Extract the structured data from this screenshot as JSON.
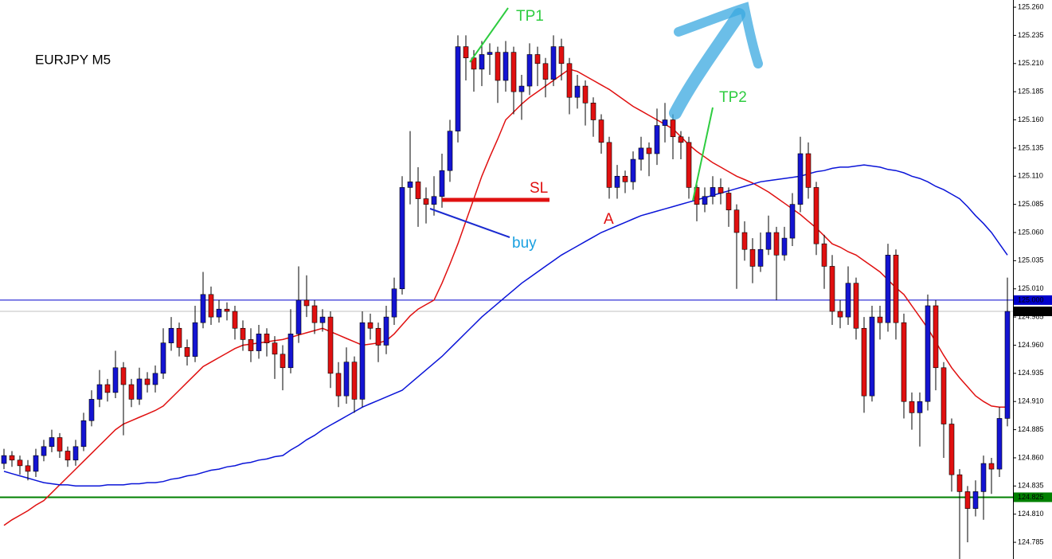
{
  "chart_data": {
    "type": "candlestick",
    "title": "EURJPY M5",
    "up_color": "#1414d2",
    "down_color": "#e01010",
    "ylim": [
      124.7702,
      125.2664
    ],
    "yticks": [
      124.785,
      {
        "value": 124.81,
        "label": "124.810"
      },
      124.835,
      {
        "value": 124.86,
        "label": "124.860"
      },
      124.885,
      {
        "value": 124.91,
        "label": "124.910"
      },
      124.935,
      {
        "value": 124.96,
        "label": "124.960"
      },
      124.985,
      {
        "value": 125.01,
        "label": "125.010"
      },
      125.035,
      {
        "value": 125.06,
        "label": "125.060"
      },
      125.085,
      {
        "value": 125.11,
        "label": "125.110"
      },
      125.135,
      {
        "value": 125.16,
        "label": "125.160"
      },
      125.185,
      {
        "value": 125.21,
        "label": "125.210"
      },
      125.235,
      {
        "value": 125.26,
        "label": "125.260"
      }
    ],
    "levels": [
      {
        "value": 125.0,
        "label": "125.000",
        "color": "#0000cc"
      },
      {
        "value": 124.99,
        "label": "124.990",
        "color": "#000000"
      },
      {
        "value": 124.825,
        "label": "124.825",
        "color": "#008000"
      }
    ],
    "annotations": {
      "tp1": "TP1",
      "tp2": "TP2",
      "sl": "SL",
      "buy": "buy",
      "a": "A"
    },
    "candles": [
      [
        124.855,
        124.868,
        124.85,
        124.862
      ],
      [
        124.862,
        124.866,
        124.852,
        124.858
      ],
      [
        124.858,
        124.862,
        124.845,
        124.853
      ],
      [
        124.853,
        124.858,
        124.84,
        124.848
      ],
      [
        124.848,
        124.868,
        124.843,
        124.862
      ],
      [
        124.862,
        124.876,
        124.857,
        124.87
      ],
      [
        124.87,
        124.885,
        124.865,
        124.878
      ],
      [
        124.878,
        124.882,
        124.86,
        124.866
      ],
      [
        124.866,
        124.87,
        124.852,
        124.858
      ],
      [
        124.858,
        124.876,
        124.853,
        124.87
      ],
      [
        124.87,
        124.9,
        124.866,
        124.893
      ],
      [
        124.893,
        124.92,
        124.888,
        124.912
      ],
      [
        124.912,
        124.938,
        124.905,
        124.925
      ],
      [
        124.925,
        124.93,
        124.91,
        124.918
      ],
      [
        124.918,
        124.955,
        124.913,
        124.94
      ],
      [
        124.94,
        124.945,
        124.88,
        124.925
      ],
      [
        124.925,
        124.93,
        124.905,
        124.912
      ],
      [
        124.912,
        124.94,
        124.907,
        124.93
      ],
      [
        124.93,
        124.936,
        124.918,
        124.925
      ],
      [
        124.925,
        124.942,
        124.918,
        124.935
      ],
      [
        124.935,
        124.975,
        124.93,
        124.962
      ],
      [
        124.962,
        124.985,
        124.955,
        124.975
      ],
      [
        124.975,
        124.98,
        124.95,
        124.958
      ],
      [
        124.958,
        124.965,
        124.942,
        124.95
      ],
      [
        124.95,
        124.995,
        124.945,
        124.98
      ],
      [
        124.98,
        125.025,
        124.975,
        125.005
      ],
      [
        125.005,
        125.012,
        124.978,
        124.985
      ],
      [
        124.985,
        125.0,
        124.98,
        124.992
      ],
      [
        124.992,
        124.998,
        124.982,
        124.99
      ],
      [
        124.99,
        124.995,
        124.965,
        124.975
      ],
      [
        124.975,
        124.982,
        124.955,
        124.965
      ],
      [
        124.965,
        124.975,
        124.945,
        124.955
      ],
      [
        124.955,
        124.978,
        124.948,
        124.97
      ],
      [
        124.97,
        124.975,
        124.95,
        124.962
      ],
      [
        124.962,
        124.968,
        124.93,
        124.952
      ],
      [
        124.952,
        124.96,
        124.92,
        124.94
      ],
      [
        124.94,
        124.992,
        124.935,
        124.97
      ],
      [
        124.97,
        125.03,
        124.962,
        125.0
      ],
      [
        125.0,
        125.022,
        124.985,
        124.995
      ],
      [
        124.995,
        125.0,
        124.97,
        124.98
      ],
      [
        124.98,
        124.992,
        124.972,
        124.985
      ],
      [
        124.985,
        124.99,
        124.922,
        124.935
      ],
      [
        124.935,
        124.945,
        124.905,
        124.915
      ],
      [
        124.915,
        124.958,
        124.908,
        124.945
      ],
      [
        124.945,
        124.95,
        124.9,
        124.912
      ],
      [
        124.912,
        124.99,
        124.905,
        124.98
      ],
      [
        124.98,
        124.988,
        124.965,
        124.975
      ],
      [
        124.975,
        124.98,
        124.945,
        124.96
      ],
      [
        124.96,
        124.995,
        124.952,
        124.985
      ],
      [
        124.985,
        125.02,
        124.978,
        125.01
      ],
      [
        125.01,
        125.11,
        125.005,
        125.1
      ],
      [
        125.1,
        125.15,
        125.085,
        125.105
      ],
      [
        125.105,
        125.118,
        125.065,
        125.09
      ],
      [
        125.09,
        125.1,
        125.068,
        125.085
      ],
      [
        125.085,
        125.11,
        125.075,
        125.092
      ],
      [
        125.092,
        125.13,
        125.082,
        125.115
      ],
      [
        125.115,
        125.16,
        125.105,
        125.15
      ],
      [
        125.15,
        125.235,
        125.14,
        125.225
      ],
      [
        125.225,
        125.235,
        125.195,
        125.215
      ],
      [
        125.215,
        125.222,
        125.185,
        125.205
      ],
      [
        125.205,
        125.23,
        125.19,
        125.218
      ],
      [
        125.218,
        125.228,
        125.2,
        125.22
      ],
      [
        125.22,
        125.225,
        125.175,
        125.195
      ],
      [
        125.195,
        125.23,
        125.185,
        125.22
      ],
      [
        125.22,
        125.225,
        125.165,
        125.185
      ],
      [
        125.185,
        125.2,
        125.16,
        125.19
      ],
      [
        125.19,
        125.228,
        125.182,
        125.218
      ],
      [
        125.218,
        125.225,
        125.19,
        125.21
      ],
      [
        125.21,
        125.215,
        125.18,
        125.196
      ],
      [
        125.196,
        125.235,
        125.19,
        125.225
      ],
      [
        125.225,
        125.232,
        125.195,
        125.21
      ],
      [
        125.21,
        125.215,
        125.165,
        125.18
      ],
      [
        125.18,
        125.2,
        125.17,
        125.19
      ],
      [
        125.19,
        125.195,
        125.155,
        125.175
      ],
      [
        125.175,
        125.18,
        125.145,
        125.16
      ],
      [
        125.16,
        125.165,
        125.13,
        125.14
      ],
      [
        125.14,
        125.145,
        125.09,
        125.1
      ],
      [
        125.1,
        125.12,
        125.09,
        125.11
      ],
      [
        125.11,
        125.115,
        125.095,
        125.105
      ],
      [
        125.105,
        125.132,
        125.098,
        125.125
      ],
      [
        125.125,
        125.145,
        125.115,
        125.135
      ],
      [
        125.135,
        125.14,
        125.11,
        125.13
      ],
      [
        125.13,
        125.17,
        125.12,
        125.155
      ],
      [
        125.155,
        125.175,
        125.14,
        125.16
      ],
      [
        125.16,
        125.165,
        125.125,
        125.145
      ],
      [
        125.145,
        125.15,
        125.125,
        125.14
      ],
      [
        125.14,
        125.145,
        125.09,
        125.1
      ],
      [
        125.1,
        125.105,
        125.07,
        125.085
      ],
      [
        125.085,
        125.1,
        125.078,
        125.092
      ],
      [
        125.092,
        125.11,
        125.085,
        125.1
      ],
      [
        125.1,
        125.108,
        125.085,
        125.095
      ],
      [
        125.095,
        125.1,
        125.065,
        125.08
      ],
      [
        125.08,
        125.085,
        125.01,
        125.06
      ],
      [
        125.06,
        125.07,
        125.035,
        125.045
      ],
      [
        125.045,
        125.055,
        125.015,
        125.03
      ],
      [
        125.03,
        125.06,
        125.025,
        125.045
      ],
      [
        125.045,
        125.075,
        125.04,
        125.06
      ],
      [
        125.06,
        125.065,
        125.0,
        125.04
      ],
      [
        125.04,
        125.065,
        125.035,
        125.055
      ],
      [
        125.055,
        125.095,
        125.048,
        125.085
      ],
      [
        125.085,
        125.145,
        125.078,
        125.13
      ],
      [
        125.13,
        125.14,
        125.09,
        125.1
      ],
      [
        125.1,
        125.105,
        125.04,
        125.05
      ],
      [
        125.05,
        125.058,
        125.01,
        125.03
      ],
      [
        125.03,
        125.04,
        124.978,
        124.99
      ],
      [
        124.99,
        125.0,
        124.975,
        124.985
      ],
      [
        124.985,
        125.03,
        124.978,
        125.015
      ],
      [
        125.015,
        125.02,
        124.965,
        124.975
      ],
      [
        124.975,
        124.985,
        124.9,
        124.915
      ],
      [
        124.915,
        124.995,
        124.91,
        124.985
      ],
      [
        124.985,
        124.995,
        124.965,
        124.98
      ],
      [
        124.98,
        125.05,
        124.972,
        125.04
      ],
      [
        125.04,
        125.045,
        124.965,
        124.98
      ],
      [
        124.98,
        124.988,
        124.895,
        124.91
      ],
      [
        124.91,
        124.918,
        124.885,
        124.9
      ],
      [
        124.9,
        124.918,
        124.87,
        124.91
      ],
      [
        124.91,
        125.005,
        124.902,
        124.995
      ],
      [
        124.995,
        125.0,
        124.92,
        124.94
      ],
      [
        124.94,
        124.945,
        124.86,
        124.89
      ],
      [
        124.89,
        124.895,
        124.83,
        124.845
      ],
      [
        124.845,
        124.85,
        124.77,
        124.83
      ],
      [
        124.83,
        124.835,
        124.785,
        124.815
      ],
      [
        124.815,
        124.84,
        124.808,
        124.83
      ],
      [
        124.83,
        124.862,
        124.805,
        124.855
      ],
      [
        124.855,
        124.86,
        124.828,
        124.85
      ],
      [
        124.85,
        124.905,
        124.843,
        124.895
      ],
      [
        124.895,
        125.02,
        124.888,
        124.99
      ]
    ],
    "series": [
      {
        "color": "#e01010",
        "values": [
          124.8,
          124.805,
          124.809,
          124.813,
          124.818,
          124.822,
          124.829,
          124.836,
          124.843,
          124.85,
          124.857,
          124.864,
          124.871,
          124.878,
          124.885,
          124.89,
          124.893,
          124.896,
          124.899,
          124.902,
          124.906,
          124.913,
          124.92,
          124.927,
          124.934,
          124.941,
          124.945,
          124.949,
          124.953,
          124.957,
          124.96,
          124.961,
          124.962,
          124.963,
          124.964,
          124.965,
          124.967,
          124.969,
          124.971,
          124.973,
          124.975,
          124.972,
          124.969,
          124.966,
          124.963,
          124.96,
          124.961,
          124.962,
          124.964,
          124.97,
          124.978,
          124.986,
          124.992,
          124.996,
          125.0,
          125.015,
          125.032,
          125.05,
          125.07,
          125.09,
          125.11,
          125.127,
          125.143,
          125.16,
          125.167,
          125.174,
          125.18,
          125.185,
          125.19,
          125.195,
          125.2,
          125.205,
          125.203,
          125.199,
          125.195,
          125.191,
          125.187,
          125.182,
          125.177,
          125.172,
          125.168,
          125.164,
          125.16,
          125.156,
          125.152,
          125.145,
          125.138,
          125.132,
          125.127,
          125.122,
          125.118,
          125.114,
          125.11,
          125.107,
          125.104,
          125.1,
          125.096,
          125.091,
          125.086,
          125.081,
          125.076,
          125.07,
          125.064,
          125.057,
          125.05,
          125.047,
          125.043,
          125.04,
          125.035,
          125.03,
          125.025,
          125.018,
          125.011,
          125.005,
          124.995,
          124.985,
          124.975,
          124.963,
          124.951,
          124.94,
          124.931,
          124.923,
          124.915,
          124.91,
          124.906,
          124.905,
          124.905
        ]
      },
      {
        "color": "#0a14d8",
        "values": [
          124.848,
          124.846,
          124.844,
          124.842,
          124.84,
          124.838,
          124.837,
          124.836,
          124.836,
          124.835,
          124.835,
          124.835,
          124.835,
          124.836,
          124.836,
          124.836,
          124.837,
          124.837,
          124.838,
          124.838,
          124.839,
          124.841,
          124.842,
          124.844,
          124.845,
          124.847,
          124.849,
          124.85,
          124.852,
          124.853,
          124.855,
          124.856,
          124.858,
          124.859,
          124.861,
          124.862,
          124.867,
          124.871,
          124.876,
          124.88,
          124.885,
          124.889,
          124.893,
          124.897,
          124.901,
          124.905,
          124.908,
          124.911,
          124.914,
          124.917,
          124.92,
          124.926,
          124.932,
          124.938,
          124.944,
          124.95,
          124.957,
          124.964,
          124.971,
          124.978,
          124.985,
          124.991,
          124.997,
          125.003,
          125.009,
          125.015,
          125.02,
          125.025,
          125.03,
          125.035,
          125.04,
          125.044,
          125.048,
          125.052,
          125.056,
          125.06,
          125.063,
          125.066,
          125.069,
          125.072,
          125.075,
          125.077,
          125.079,
          125.081,
          125.083,
          125.085,
          125.087,
          125.089,
          125.091,
          125.093,
          125.095,
          125.097,
          125.099,
          125.101,
          125.103,
          125.105,
          125.106,
          125.107,
          125.108,
          125.109,
          125.11,
          125.112,
          125.114,
          125.115,
          125.117,
          125.118,
          125.118,
          125.119,
          125.12,
          125.119,
          125.118,
          125.116,
          125.115,
          125.113,
          125.11,
          125.108,
          125.105,
          125.101,
          125.098,
          125.094,
          125.09,
          125.083,
          125.075,
          125.068,
          125.06,
          125.05,
          125.04
        ]
      }
    ]
  }
}
